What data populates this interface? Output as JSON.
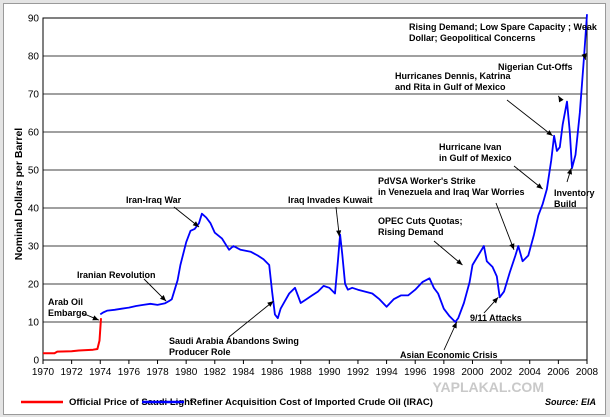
{
  "chart_data": {
    "type": "line",
    "ylabel": "Nominal Dollars per Barrel",
    "xlim": [
      1970,
      2008
    ],
    "ylim": [
      0,
      90
    ],
    "x_ticks": [
      "1970",
      "1972",
      "1974",
      "1976",
      "1978",
      "1980",
      "1982",
      "1984",
      "1986",
      "1988",
      "1990",
      "1992",
      "1994",
      "1996",
      "1998",
      "2000",
      "2002",
      "2004",
      "2006",
      "2008"
    ],
    "y_ticks": [
      "0",
      "10",
      "20",
      "30",
      "40",
      "50",
      "60",
      "70",
      "80",
      "90"
    ],
    "grid": "horizontal",
    "legend_position": "bottom",
    "series": [
      {
        "name": "Official Price of Saudi Light",
        "color": "#ff0000",
        "x": [
          1970.0,
          1970.8,
          1971.0,
          1972.0,
          1972.5,
          1973.0,
          1973.5,
          1973.8,
          1973.95,
          1974.05
        ],
        "y": [
          1.8,
          1.8,
          2.2,
          2.3,
          2.5,
          2.6,
          2.7,
          2.9,
          5.1,
          11.0
        ]
      },
      {
        "name": "Refiner Acquisition Cost of Imported Crude Oil (IRAC)",
        "color": "#0000ff",
        "x": [
          1974.0,
          1974.2,
          1974.5,
          1975.0,
          1975.5,
          1976.0,
          1976.5,
          1977.0,
          1977.5,
          1978.0,
          1978.5,
          1978.8,
          1979.0,
          1979.2,
          1979.4,
          1979.6,
          1979.8,
          1980.0,
          1980.3,
          1980.6,
          1980.9,
          1981.1,
          1981.4,
          1981.7,
          1982.0,
          1982.5,
          1983.0,
          1983.3,
          1983.8,
          1984.5,
          1985.0,
          1985.4,
          1985.8,
          1986.0,
          1986.2,
          1986.4,
          1986.6,
          1986.9,
          1987.2,
          1987.6,
          1988.0,
          1988.4,
          1988.8,
          1989.2,
          1989.6,
          1990.0,
          1990.4,
          1990.6,
          1990.75,
          1990.9,
          1991.1,
          1991.3,
          1991.6,
          1992.0,
          1992.5,
          1993.0,
          1993.5,
          1994.0,
          1994.5,
          1995.0,
          1995.5,
          1996.0,
          1996.5,
          1997.0,
          1997.3,
          1997.6,
          1998.0,
          1998.4,
          1998.8,
          1999.0,
          1999.4,
          1999.8,
          2000.0,
          2000.4,
          2000.8,
          2001.0,
          2001.4,
          2001.7,
          2001.9,
          2002.2,
          2002.6,
          2003.0,
          2003.2,
          2003.5,
          2003.9,
          2004.3,
          2004.6,
          2004.9,
          2005.2,
          2005.5,
          2005.7,
          2005.9,
          2006.1,
          2006.3,
          2006.6,
          2006.8,
          2006.95,
          2007.2,
          2007.5,
          2007.8,
          2008.0
        ],
        "y": [
          12.0,
          12.5,
          13.0,
          13.2,
          13.5,
          13.8,
          14.2,
          14.5,
          14.8,
          14.5,
          14.9,
          15.5,
          16.0,
          18.5,
          21.0,
          25.0,
          28.0,
          31.0,
          34.0,
          34.5,
          36.0,
          38.5,
          37.5,
          36.0,
          33.5,
          32.0,
          29.0,
          30.0,
          29.0,
          28.5,
          27.5,
          26.5,
          25.0,
          18.0,
          12.0,
          11.0,
          13.5,
          15.5,
          17.5,
          19.0,
          15.0,
          16.0,
          17.0,
          18.0,
          19.5,
          19.0,
          17.5,
          26.0,
          33.0,
          28.0,
          20.0,
          18.5,
          19.0,
          18.5,
          18.0,
          17.5,
          16.0,
          14.0,
          16.0,
          17.0,
          17.0,
          18.5,
          20.5,
          21.5,
          19.0,
          17.5,
          13.5,
          11.5,
          10.0,
          11.0,
          15.0,
          20.5,
          25.0,
          27.5,
          30.0,
          26.0,
          24.5,
          22.0,
          16.5,
          18.0,
          23.0,
          27.5,
          30.0,
          26.0,
          27.5,
          33.0,
          38.0,
          41.0,
          45.0,
          52.5,
          59.0,
          55.0,
          56.0,
          62.0,
          68.0,
          60.0,
          50.5,
          54.0,
          65.0,
          80.0,
          91.0
        ]
      }
    ],
    "annotations": [
      {
        "lines": [
          "Rising Demand; Low Spare Capacity ; Weak",
          "Dollar; Geopolitical Concerns"
        ],
        "point": [
          2007.9,
          79
        ]
      },
      {
        "lines": [
          "Nigerian Cut-Offs"
        ],
        "point": [
          2006.0,
          69.5
        ]
      },
      {
        "lines": [
          "Hurricanes Dennis, Katrina",
          "and Rita in Gulf of Mexico"
        ],
        "point": [
          2005.6,
          59
        ]
      },
      {
        "lines": [
          "Hurricane Ivan",
          "in Gulf of Mexico"
        ],
        "point": [
          2004.9,
          45
        ]
      },
      {
        "lines": [
          "PdVSA Worker's Strike",
          "in Venezuela and Iraq War Worries"
        ],
        "point": [
          2002.9,
          29
        ]
      },
      {
        "lines": [
          "Inventory",
          "Build"
        ],
        "point": [
          2006.9,
          50.5
        ]
      },
      {
        "lines": [
          "OPEC Cuts Quotas;",
          "Rising Demand"
        ],
        "point": [
          1999.3,
          25
        ]
      },
      {
        "lines": [
          "Iran-Iraq War"
        ],
        "point": [
          1980.9,
          35
        ]
      },
      {
        "lines": [
          "Iraq Invades Kuwait"
        ],
        "point": [
          1990.7,
          32.5
        ]
      },
      {
        "lines": [
          "Iranian Revolution"
        ],
        "point": [
          1978.6,
          15.5
        ]
      },
      {
        "lines": [
          "Arab Oil",
          "Embargo"
        ],
        "point": [
          1973.9,
          10.5
        ]
      },
      {
        "lines": [
          "Saudi Arabia Abandons Swing",
          "Producer Role"
        ],
        "point": [
          1986.1,
          15.5
        ]
      },
      {
        "lines": [
          "9/11 Attacks"
        ],
        "point": [
          2001.8,
          16.5
        ]
      },
      {
        "lines": [
          "Asian Economic Crisis"
        ],
        "point": [
          1998.9,
          10
        ]
      }
    ],
    "source": "Source: EIA"
  },
  "watermark": "YAPLAKAL.COM"
}
